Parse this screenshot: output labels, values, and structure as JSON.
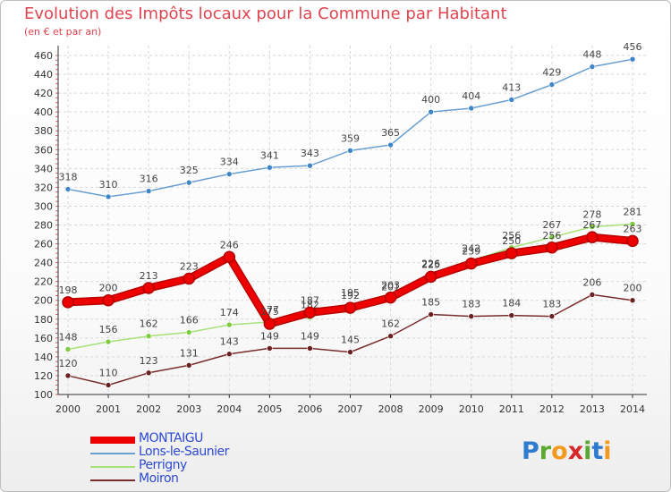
{
  "header": {
    "title": "Evolution des Impôts locaux pour la Commune par Habitant",
    "subtitle": "(en € et par an)"
  },
  "colors": {
    "title": "#e0454f",
    "legend_text": "#2c4ad2",
    "grid": "#d8d8d8",
    "axis": "#333333"
  },
  "chart_data": {
    "type": "line",
    "title": "Evolution des Impôts locaux pour la Commune par Habitant",
    "subtitle": "(en € et par an)",
    "xlabel": "",
    "ylabel": "",
    "x": [
      "2000",
      "2001",
      "2002",
      "2003",
      "2004",
      "2005",
      "2006",
      "2007",
      "2008",
      "2009",
      "2010",
      "2011",
      "2012",
      "2013",
      "2014"
    ],
    "ylim": [
      100,
      460
    ],
    "yticks": [
      100,
      120,
      140,
      160,
      180,
      200,
      220,
      240,
      260,
      280,
      300,
      320,
      340,
      360,
      380,
      400,
      420,
      440,
      460
    ],
    "grid": true,
    "legend_position": "bottom-left",
    "series": [
      {
        "name": "Lons-le-Saunier",
        "color": "#6a9fd2",
        "marker": "#3f86c8",
        "values": [
          318,
          310,
          316,
          325,
          334,
          341,
          343,
          359,
          365,
          400,
          404,
          413,
          429,
          448,
          456
        ],
        "labels": [
          "318",
          "310",
          "316",
          "325",
          "334",
          "341",
          "343",
          "359",
          "365",
          "400",
          "404",
          "413",
          "429",
          "448",
          "456"
        ]
      },
      {
        "name": "Perrigny",
        "color": "#a8e07a",
        "marker": "#7ccc3c",
        "values": [
          148,
          156,
          162,
          166,
          174,
          177,
          182,
          195,
          201,
          226,
          242,
          256,
          267,
          278,
          281
        ],
        "labels": [
          "148",
          "156",
          "162",
          "166",
          "174",
          "177",
          "182",
          "195",
          "201",
          "226",
          "242",
          "256",
          "267",
          "278",
          "281"
        ]
      },
      {
        "name": "Moiron",
        "color": "#7a2c2c",
        "marker": "#6a2020",
        "values": [
          120,
          110,
          123,
          131,
          143,
          149,
          149,
          145,
          162,
          185,
          183,
          184,
          183,
          206,
          200
        ],
        "labels": [
          "120",
          "110",
          "123",
          "131",
          "143",
          "149",
          "149",
          "145",
          "162",
          "185",
          "183",
          "184",
          "183",
          "206",
          "200"
        ]
      },
      {
        "name": "MONTAIGU",
        "color": "#ee0000",
        "marker": "#ee0000",
        "values": [
          198,
          200,
          213,
          223,
          246,
          175,
          187,
          192,
          203,
          225,
          239,
          250,
          256,
          267,
          263
        ],
        "labels": [
          "198",
          "200",
          "213",
          "223",
          "246",
          "175",
          "187",
          "192",
          "203",
          "225",
          "239",
          "250",
          "256",
          "267",
          "263"
        ]
      }
    ]
  },
  "legend": {
    "items": [
      {
        "label": "MONTAIGU",
        "color": "#ee0000"
      },
      {
        "label": "Lons-le-Saunier",
        "color": "#6a9fd2"
      },
      {
        "label": "Perrigny",
        "color": "#a8e07a"
      },
      {
        "label": "Moiron",
        "color": "#7a2c2c"
      }
    ]
  },
  "logo": {
    "text": "Proxiti",
    "letters": [
      "P",
      "r",
      "o",
      "x",
      "i",
      "t",
      "i"
    ],
    "letter_colors": [
      "#2f7bd0",
      "#5aa830",
      "#f39a1e",
      "#d8282b",
      "#5aa830",
      "#2f7bd0",
      "#f39a1e"
    ]
  }
}
